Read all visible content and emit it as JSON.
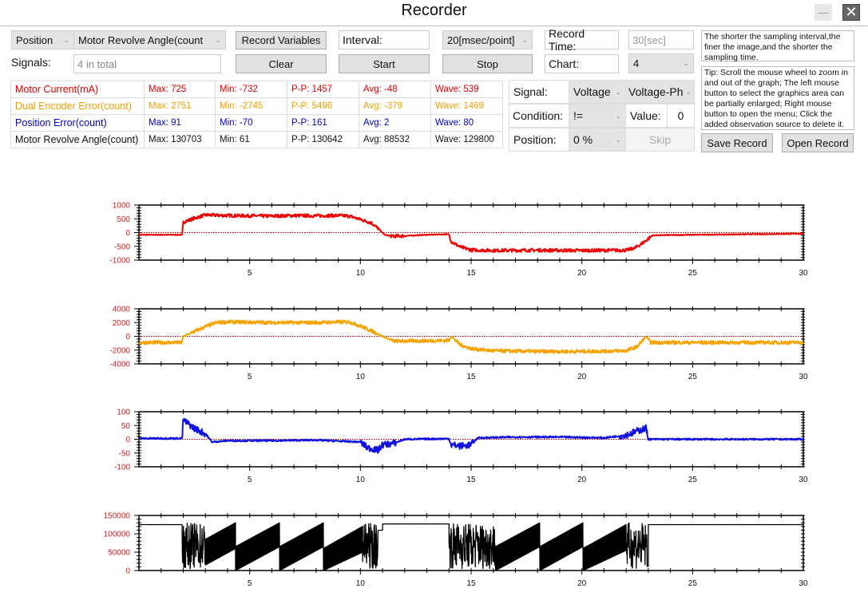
{
  "window": {
    "title": "Recorder",
    "minimize_icon": "minimize-icon",
    "close_icon": "close-icon"
  },
  "controls": {
    "signal_category": "Position",
    "signal_variable": "Motor Revolve Angle(count",
    "record_variables_label": "Record Variables",
    "interval_label": "Interval:",
    "interval_value": "20[msec/point]",
    "record_time_label": "Record Time:",
    "record_time_value": "30[sec]",
    "signals_label": "Signals:",
    "signals_value": "4  in total",
    "clear_label": "Clear",
    "start_label": "Start",
    "stop_label": "Stop",
    "chart_label": "Chart:",
    "chart_value": "4",
    "save_record_label": "Save Record",
    "open_record_label": "Open Record"
  },
  "info": {
    "sampling_note": "The shorter the sampling interval,the finer the image,and the shorter the sampling time.",
    "tip": "Tip: Scroll the mouse wheel to zoom in and out of the graph; The left mouse button to select the graphics area can be partially enlarged; Right mouse button to open the menu; Click the added observation source to delete it."
  },
  "stats": [
    {
      "name": "Motor Current(mA)",
      "max": "Max: 725",
      "min": "Min: -732",
      "pp": "P-P: 1457",
      "avg": "Avg: -48",
      "wave": "Wave: 539",
      "color": "#e00000"
    },
    {
      "name": "Dual Encoder Error(count)",
      "max": "Max: 2751",
      "min": "Min: -2745",
      "pp": "P-P: 5496",
      "avg": "Avg: -379",
      "wave": "Wave: 1469",
      "color": "#f0a000"
    },
    {
      "name": "Position Error(count)",
      "max": "Max: 91",
      "min": "Min: -70",
      "pp": "P-P: 161",
      "avg": "Avg: 2",
      "wave": "Wave: 80",
      "color": "#0000c8"
    },
    {
      "name": "Motor Revolve Angle(count)",
      "max": "Max: 130703",
      "min": "Min: 61",
      "pp": "P-P: 130642",
      "avg": "Avg: 88532",
      "wave": "Wave: 129800",
      "color": "#111111"
    }
  ],
  "trigger": {
    "signal_label": "Signal:",
    "signal_type": "Voltage",
    "signal_channel": "Voltage-Ph",
    "condition_label": "Condition:",
    "condition_value": "!=",
    "value_label": "Value:",
    "value": "0",
    "position_label": "Position:",
    "position_value": "0 %",
    "skip_label": "Skip"
  },
  "chart_data": [
    {
      "type": "line",
      "xlim": [
        0,
        30
      ],
      "ylim": [
        -1000,
        1000
      ],
      "xticks": [
        "5",
        "10",
        "15",
        "20",
        "25",
        "30"
      ],
      "yticks": [
        "1000",
        "500",
        "0",
        "-500",
        "-1000"
      ],
      "yvals": [
        1000,
        500,
        0,
        -500,
        -1000
      ],
      "grid": false,
      "zero_line": true,
      "color": "#ee0000",
      "noise": 60,
      "points": [
        [
          0,
          -80
        ],
        [
          1.95,
          -80
        ],
        [
          2.0,
          380
        ],
        [
          2.5,
          520
        ],
        [
          3,
          640
        ],
        [
          4,
          620
        ],
        [
          5,
          610
        ],
        [
          6,
          600
        ],
        [
          7,
          620
        ],
        [
          8,
          610
        ],
        [
          9,
          620
        ],
        [
          9.5,
          600
        ],
        [
          10,
          480
        ],
        [
          10.5,
          350
        ],
        [
          10.8,
          150
        ],
        [
          11.1,
          -80
        ],
        [
          11.4,
          -130
        ],
        [
          12,
          -120
        ],
        [
          13,
          -80
        ],
        [
          14,
          -60
        ],
        [
          14.1,
          -320
        ],
        [
          14.5,
          -520
        ],
        [
          15,
          -630
        ],
        [
          16,
          -650
        ],
        [
          18,
          -640
        ],
        [
          20,
          -650
        ],
        [
          22,
          -640
        ],
        [
          22.4,
          -560
        ],
        [
          22.8,
          -350
        ],
        [
          23.2,
          -100
        ],
        [
          25,
          -80
        ],
        [
          30,
          -40
        ]
      ]
    },
    {
      "type": "line",
      "xlim": [
        0,
        30
      ],
      "ylim": [
        -4000,
        4000
      ],
      "xticks": [
        "5",
        "10",
        "15",
        "20",
        "25",
        "30"
      ],
      "yticks": [
        "4000",
        "2000",
        "0",
        "-2000",
        "-4000"
      ],
      "yvals": [
        4000,
        2000,
        0,
        -2000,
        -4000
      ],
      "grid": false,
      "zero_line": true,
      "color": "#f5a300",
      "noise": 250,
      "points": [
        [
          0,
          -900
        ],
        [
          1.95,
          -900
        ],
        [
          2.0,
          0
        ],
        [
          2.5,
          700
        ],
        [
          3,
          1400
        ],
        [
          3.5,
          2000
        ],
        [
          4,
          2100
        ],
        [
          6,
          2000
        ],
        [
          8,
          2000
        ],
        [
          9.5,
          2100
        ],
        [
          10,
          1500
        ],
        [
          10.5,
          800
        ],
        [
          11,
          0
        ],
        [
          11.5,
          -700
        ],
        [
          13,
          -650
        ],
        [
          14,
          -600
        ],
        [
          14.1,
          0
        ],
        [
          14.5,
          -1200
        ],
        [
          15,
          -1800
        ],
        [
          16,
          -2100
        ],
        [
          18,
          -2200
        ],
        [
          20,
          -2200
        ],
        [
          22,
          -2100
        ],
        [
          22.5,
          -1500
        ],
        [
          22.9,
          0
        ],
        [
          23.1,
          -900
        ],
        [
          30,
          -900
        ]
      ]
    },
    {
      "type": "line",
      "xlim": [
        0,
        30
      ],
      "ylim": [
        -100,
        100
      ],
      "xticks": [
        "5",
        "10",
        "15",
        "20",
        "25",
        "30"
      ],
      "yticks": [
        "100",
        "50",
        "0",
        "-50",
        "-100"
      ],
      "yvals": [
        100,
        50,
        0,
        -50,
        -100
      ],
      "grid": false,
      "zero_line": true,
      "color": "#1010e0",
      "noise": 12,
      "points": [
        [
          0,
          3
        ],
        [
          1.95,
          3
        ],
        [
          2.0,
          70
        ],
        [
          2.5,
          40
        ],
        [
          3,
          20
        ],
        [
          3.3,
          -10
        ],
        [
          4,
          -5
        ],
        [
          6,
          -5
        ],
        [
          8,
          -3
        ],
        [
          10,
          -10
        ],
        [
          10.3,
          -30
        ],
        [
          10.8,
          -40
        ],
        [
          11,
          -20
        ],
        [
          11.5,
          -15
        ],
        [
          12,
          0
        ],
        [
          14,
          2
        ],
        [
          14.1,
          -20
        ],
        [
          14.5,
          -25
        ],
        [
          15,
          -20
        ],
        [
          15.3,
          5
        ],
        [
          17,
          8
        ],
        [
          19,
          8
        ],
        [
          21,
          5
        ],
        [
          22,
          15
        ],
        [
          22.5,
          30
        ],
        [
          22.9,
          40
        ],
        [
          23.0,
          0
        ],
        [
          30,
          0
        ]
      ]
    },
    {
      "type": "line",
      "xlim": [
        0,
        30
      ],
      "ylim": [
        0,
        150000
      ],
      "xticks": [
        "5",
        "10",
        "15",
        "20",
        "25",
        "30"
      ],
      "yticks": [
        "150000",
        "100000",
        "50000",
        "0"
      ],
      "yvals": [
        150000,
        100000,
        50000,
        0
      ],
      "grid": false,
      "zero_line": false,
      "color": "#000000",
      "segments": [
        {
          "kind": "flat",
          "x": [
            0,
            1.95
          ],
          "y": 125000
        },
        {
          "kind": "oscillation",
          "x": [
            1.95,
            3.0
          ],
          "range": [
            5000,
            130000
          ]
        },
        {
          "kind": "band",
          "x": [
            3.0,
            4.36
          ],
          "low": [
            15000,
            60000
          ],
          "high": [
            85000,
            130000
          ]
        },
        {
          "kind": "band",
          "x": [
            4.36,
            6.35
          ],
          "low": [
            0,
            65000
          ],
          "high": [
            65000,
            130000
          ]
        },
        {
          "kind": "band",
          "x": [
            6.35,
            8.33
          ],
          "low": [
            0,
            65000
          ],
          "high": [
            65000,
            130000
          ]
        },
        {
          "kind": "band",
          "x": [
            8.33,
            10.1
          ],
          "low": [
            0,
            50000
          ],
          "high": [
            60000,
            120000
          ]
        },
        {
          "kind": "oscillation",
          "x": [
            10.1,
            10.8
          ],
          "range": [
            5000,
            130000
          ]
        },
        {
          "kind": "flat",
          "x": [
            11.0,
            14.0
          ],
          "y": 127000
        },
        {
          "kind": "oscillation",
          "x": [
            14.0,
            16.1
          ],
          "range": [
            5000,
            130000
          ]
        },
        {
          "kind": "band",
          "x": [
            16.1,
            18.1
          ],
          "low": [
            0,
            65000
          ],
          "high": [
            65000,
            130000
          ]
        },
        {
          "kind": "band",
          "x": [
            18.1,
            20.05
          ],
          "low": [
            0,
            65000
          ],
          "high": [
            65000,
            130000
          ]
        },
        {
          "kind": "band",
          "x": [
            20.05,
            22.0
          ],
          "low": [
            0,
            55000
          ],
          "high": [
            60000,
            125000
          ]
        },
        {
          "kind": "oscillation",
          "x": [
            22.0,
            22.95
          ],
          "range": [
            5000,
            130000
          ]
        },
        {
          "kind": "flat",
          "x": [
            23.0,
            30
          ],
          "y": 125000
        }
      ]
    }
  ]
}
